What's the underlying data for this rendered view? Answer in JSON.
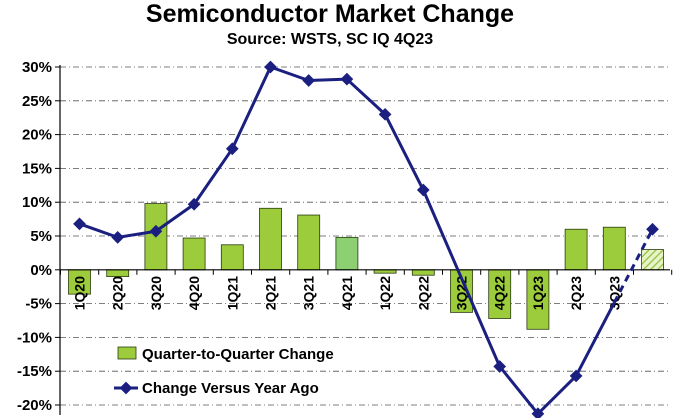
{
  "chart_data": {
    "type": "bar",
    "title": "Semiconductor Market Change",
    "subtitle": "Source: WSTS, SC IQ 4Q23",
    "categories": [
      "1Q20",
      "2Q20",
      "3Q20",
      "4Q20",
      "1Q21",
      "2Q21",
      "3Q21",
      "4Q21",
      "1Q22",
      "2Q22",
      "3Q22",
      "4Q22",
      "1Q23",
      "2Q23",
      "3Q23",
      ""
    ],
    "y_ticks": [
      "30%",
      "25%",
      "20%",
      "15%",
      "10%",
      "5%",
      "0%",
      "-5%",
      "-10%",
      "-15%",
      "-20%"
    ],
    "ylim": [
      -20,
      30
    ],
    "grid": true,
    "legend_position": "bottom-left",
    "series": [
      {
        "name": "Quarter-to-Quarter Change",
        "type": "bar",
        "values": [
          -3.6,
          -1.0,
          9.8,
          4.7,
          3.7,
          9.1,
          8.1,
          4.8,
          -0.5,
          -0.8,
          -6.3,
          -7.2,
          -8.8,
          6.0,
          6.3,
          3.0
        ],
        "color": "#9ccc3c",
        "highlight_color": "#8cd071",
        "forecast_last": true
      },
      {
        "name": "Change Versus Year Ago",
        "type": "line",
        "values": [
          6.8,
          4.8,
          5.7,
          9.7,
          17.9,
          30.0,
          28.0,
          28.2,
          23.0,
          11.8,
          null,
          -14.3,
          -21.3,
          -15.7,
          null,
          6.0
        ],
        "color": "#1a1f80",
        "forecast_last": true
      }
    ]
  }
}
